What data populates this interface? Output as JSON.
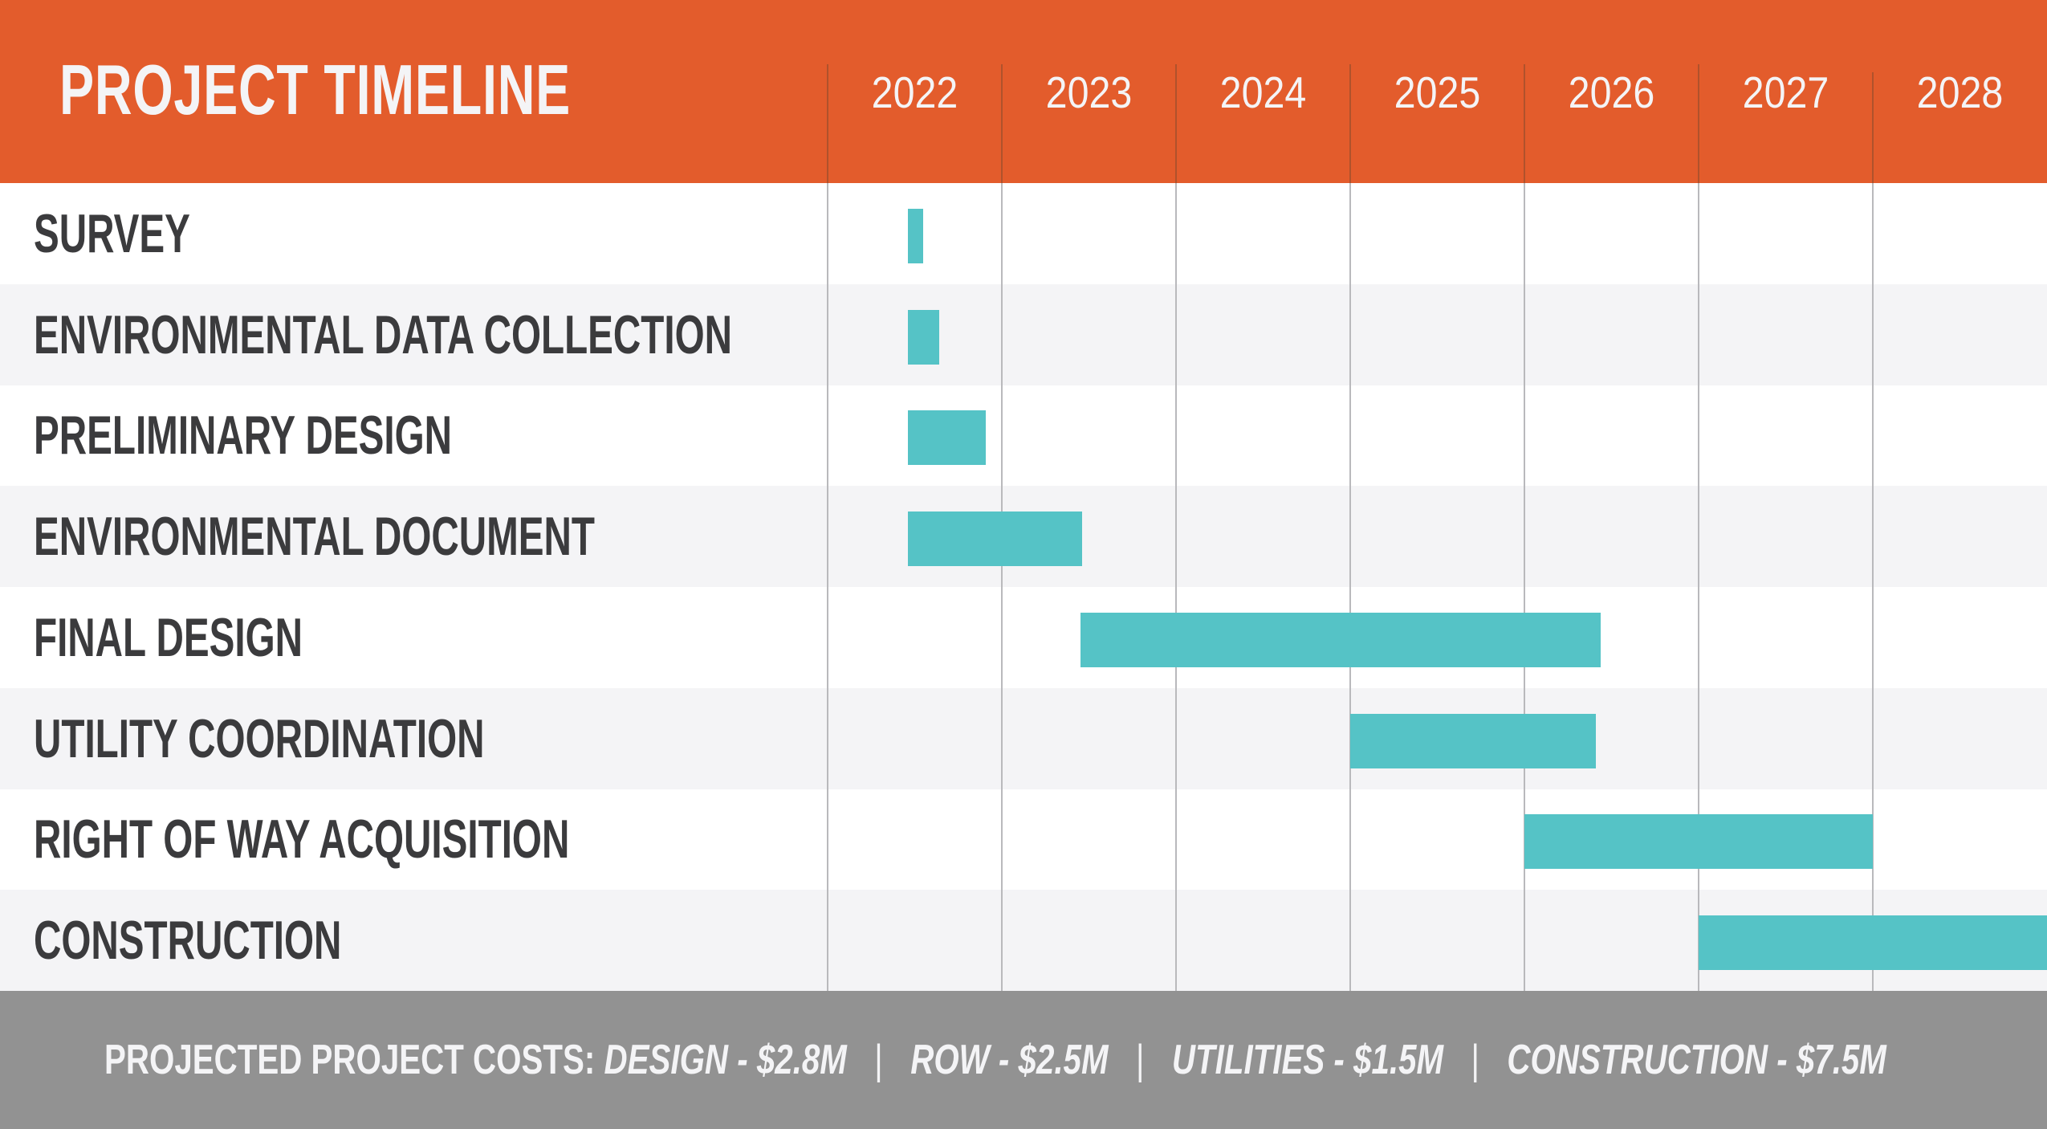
{
  "colors": {
    "header": "#E35C2C",
    "bar": "#55C3C6",
    "row_alt": "#F4F4F6",
    "row": "#FFFFFF",
    "label_text": "#3B3B3D",
    "footer": "#929292"
  },
  "footer": {
    "lead": "PROJECTED PROJECT COSTS:",
    "costs": [
      {
        "label": "DESIGN - $2.8M"
      },
      {
        "label": "ROW - $2.5M"
      },
      {
        "label": "UTILITIES - $1.5M"
      },
      {
        "label": "CONSTRUCTION - $7.5M"
      }
    ],
    "separator": "|"
  },
  "chart_data": {
    "type": "gantt",
    "title": "PROJECT TIMELINE",
    "xlabel": "",
    "ylabel": "",
    "x_unit": "year",
    "xlim": [
      2022,
      2029
    ],
    "x_ticks": [
      "2022",
      "2023",
      "2024",
      "2025",
      "2026",
      "2027",
      "2028"
    ],
    "grid": true,
    "tasks": [
      {
        "name": "SURVEY",
        "start": 2022.46,
        "end": 2022.55
      },
      {
        "name": "ENVIRONMENTAL DATA COLLECTION",
        "start": 2022.46,
        "end": 2022.64
      },
      {
        "name": "PRELIMINARY DESIGN",
        "start": 2022.46,
        "end": 2022.91
      },
      {
        "name": "ENVIRONMENTAL DOCUMENT",
        "start": 2022.46,
        "end": 2023.46
      },
      {
        "name": "FINAL DESIGN",
        "start": 2023.45,
        "end": 2026.44
      },
      {
        "name": "UTILITY COORDINATION",
        "start": 2025.0,
        "end": 2026.41
      },
      {
        "name": "RIGHT OF WAY ACQUISITION",
        "start": 2026.0,
        "end": 2028.0
      },
      {
        "name": "CONSTRUCTION",
        "start": 2027.0,
        "end": 2029.0
      }
    ]
  }
}
